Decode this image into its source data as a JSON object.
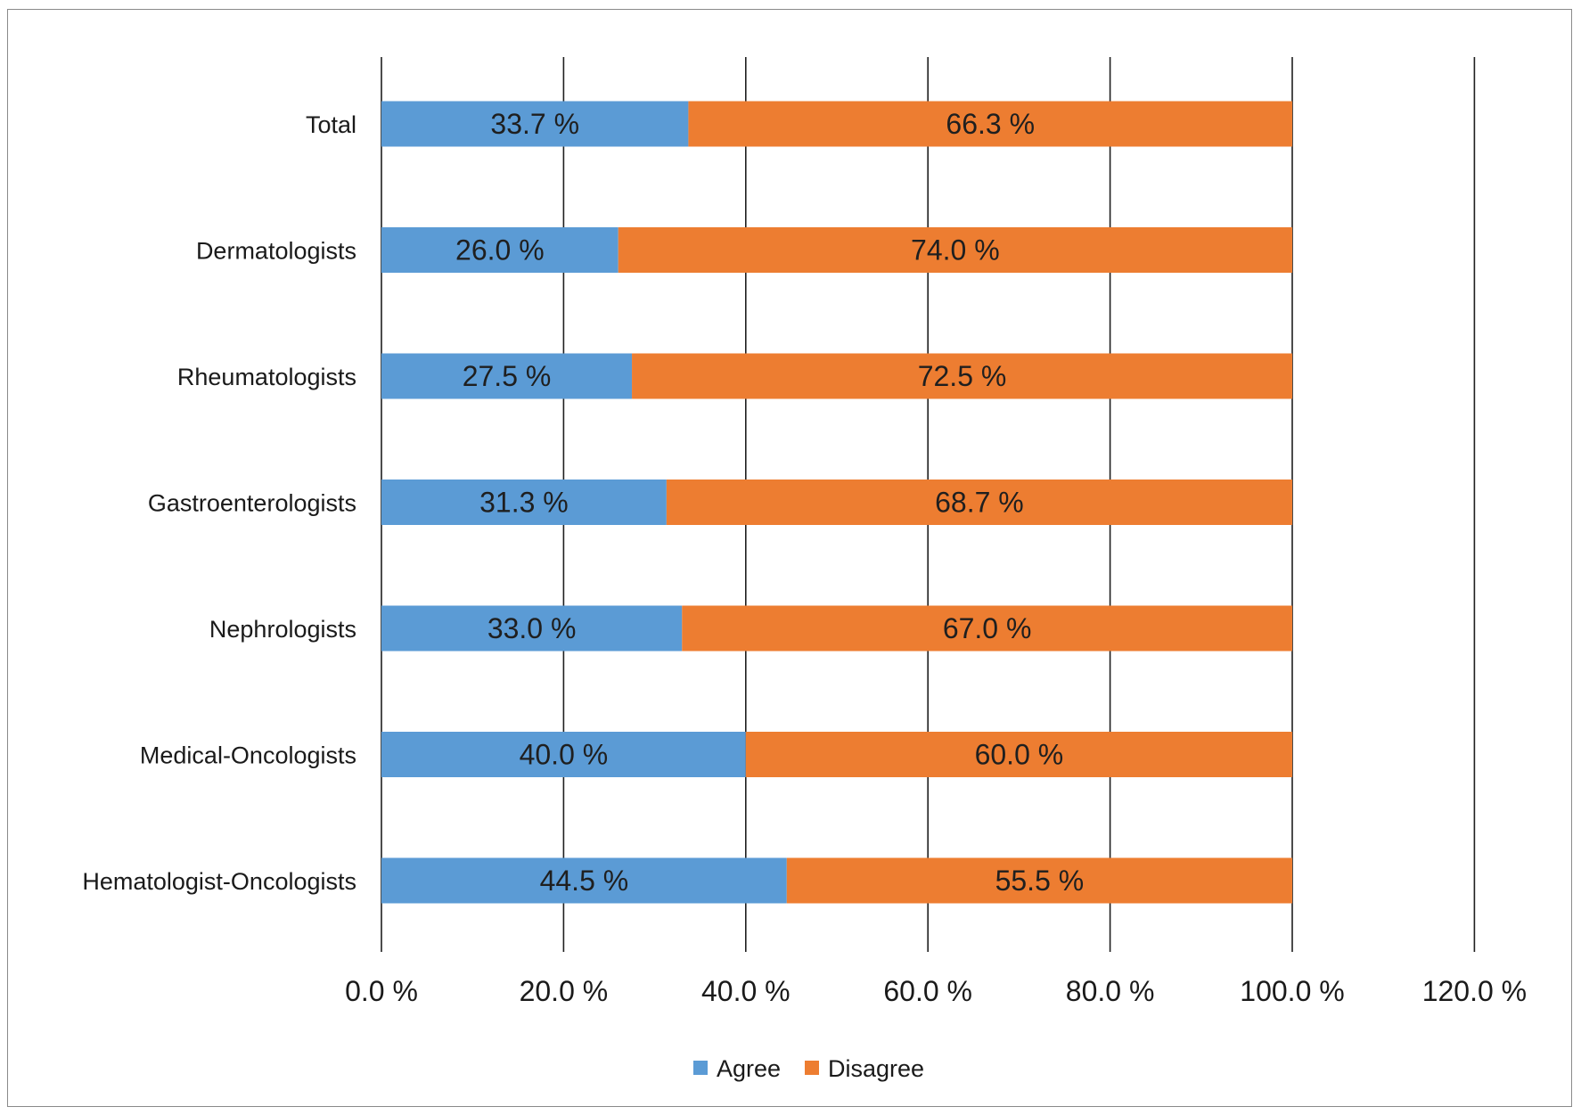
{
  "chart_data": {
    "type": "bar",
    "orientation": "horizontal",
    "stacked": true,
    "title": "",
    "xlabel": "",
    "ylabel": "",
    "categories": [
      "Total",
      "Dermatologists",
      "Rheumatologists",
      "Gastroenterologists",
      "Nephrologists",
      "Medical-Oncologists",
      "Hematologist-Oncologists"
    ],
    "series": [
      {
        "name": "Agree",
        "color": "#5b9bd5",
        "values": [
          33.7,
          26.0,
          27.5,
          31.3,
          33.0,
          40.0,
          44.5
        ],
        "data_labels": [
          "33.7 %",
          "26.0 %",
          "27.5 %",
          "31.3 %",
          "33.0 %",
          "40.0 %",
          "44.5 %"
        ]
      },
      {
        "name": "Disagree",
        "color": "#ed7d31",
        "values": [
          66.3,
          74.0,
          72.5,
          68.7,
          67.0,
          60.0,
          55.5
        ],
        "data_labels": [
          "66.3 %",
          "74.0 %",
          "72.5 %",
          "68.7 %",
          "67.0 %",
          "60.0 %",
          "55.5 %"
        ]
      }
    ],
    "xlim": [
      0,
      120
    ],
    "x_ticks": [
      0,
      20,
      40,
      60,
      80,
      100,
      120
    ],
    "x_tick_labels": [
      "0.0 %",
      "20.0 %",
      "40.0 %",
      "60.0 %",
      "80.0 %",
      "100.0 %",
      "120.0 %"
    ],
    "grid": "vertical",
    "legend": "bottom"
  }
}
